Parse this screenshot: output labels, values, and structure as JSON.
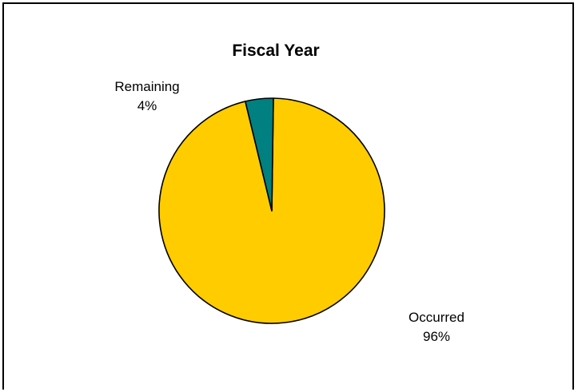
{
  "chart_data": {
    "type": "pie",
    "title": "Fiscal Year",
    "slices": [
      {
        "label": "Occurred",
        "value": 96,
        "percent_label": "96%",
        "color": "#FFCC00"
      },
      {
        "label": "Remaining",
        "value": 4,
        "percent_label": "4%",
        "color": "#008080"
      }
    ],
    "outline_color": "#000000",
    "legend": "none"
  }
}
